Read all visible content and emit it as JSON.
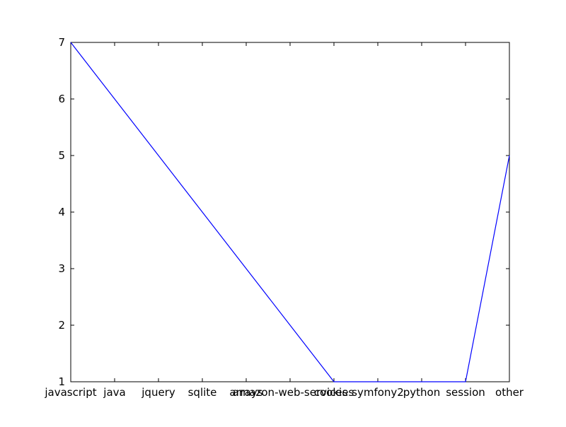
{
  "chart_data": {
    "type": "line",
    "title": "",
    "xlabel": "",
    "ylabel": "",
    "categories": [
      "javascript",
      "java",
      "jquery",
      "sqlite",
      "arrays",
      "amazon-web-services",
      "cookies",
      "symfony2",
      "python",
      "session",
      "other"
    ],
    "values": [
      7,
      6,
      5,
      4,
      3,
      2,
      1,
      1,
      1,
      1,
      5
    ],
    "ylim": [
      1,
      7
    ],
    "yticks": [
      1,
      2,
      3,
      4,
      5,
      6,
      7
    ],
    "grid": false,
    "line_color": "#0000ff"
  }
}
